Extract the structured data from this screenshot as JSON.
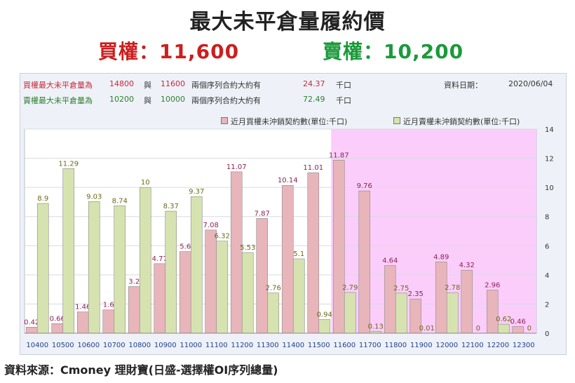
{
  "title": "最大未平倉量履約價",
  "call_summary": "買權：11,600",
  "put_summary": "賣權：10,200",
  "info": {
    "row1": {
      "label": "買權最大未平倉量為",
      "strike_a": "14800",
      "conj": "與",
      "strike_b": "11600",
      "desc": "兩個序列合約大約有",
      "value": "24.37",
      "unit": "千口"
    },
    "row2": {
      "label": "賣權最大未平倉量為",
      "strike_a": "10200",
      "conj": "與",
      "strike_b": "10000",
      "desc": "兩個序列合約大約有",
      "value": "72.49",
      "unit": "千口"
    },
    "date_label": "資料日期：",
    "date_value": "2020/06/04"
  },
  "chart_data": {
    "type": "bar",
    "categories": [
      "10400",
      "10500",
      "10600",
      "10700",
      "10800",
      "10900",
      "11000",
      "11100",
      "11200",
      "11300",
      "11400",
      "11500",
      "11600",
      "11700",
      "11800",
      "11900",
      "12000",
      "12100",
      "12200",
      "12300"
    ],
    "series": [
      {
        "name": "近月買權未沖銷契約數(單位:千口)",
        "color": "#e8b5bb",
        "label_color": "#8b2252",
        "values": [
          0.42,
          0.66,
          1.46,
          1.6,
          3.2,
          4.77,
          5.6,
          7.08,
          11.07,
          7.87,
          10.14,
          11.01,
          11.87,
          9.76,
          4.64,
          2.35,
          4.89,
          4.32,
          2.96,
          0.46
        ],
        "labels": [
          "0.42",
          "0.66",
          "1.46",
          "1.6",
          "3.2",
          "4.77",
          "5.6",
          "7.08",
          "11.07",
          "7.87",
          "10.14",
          "11.01",
          "11.87",
          "9.76",
          "4.64",
          "2.35",
          "4.89",
          "4.32",
          "2.96",
          "0.46"
        ]
      },
      {
        "name": "近月賣權未沖銷契約數(單位:千口)",
        "color": "#d6e3b0",
        "label_color": "#6b6b10",
        "values": [
          8.9,
          11.29,
          9.03,
          8.74,
          10,
          8.37,
          9.37,
          6.32,
          5.53,
          2.76,
          5.1,
          0.94,
          2.79,
          0.13,
          2.75,
          0.01,
          2.78,
          0,
          0.62,
          0
        ],
        "labels": [
          "8.9",
          "11.29",
          "9.03",
          "8.74",
          "10",
          "8.37",
          "9.37",
          "6.32",
          "5.53",
          "2.76",
          "5.1",
          "0.94",
          "2.79",
          "0.13",
          "2.75",
          "0.01",
          "2.78",
          "0",
          "0.62",
          "0"
        ]
      }
    ],
    "ylim": [
      0,
      14
    ],
    "yticks": [
      "0",
      "2",
      "4",
      "6",
      "8",
      "10",
      "12",
      "14"
    ],
    "highlight_from_category": "11600",
    "highlight_color": "#fbcdfb",
    "legend_position": "top",
    "grid": true
  },
  "footer": "資料來源：Cmoney 理財寶(日盛-選擇權OI序列總量)"
}
